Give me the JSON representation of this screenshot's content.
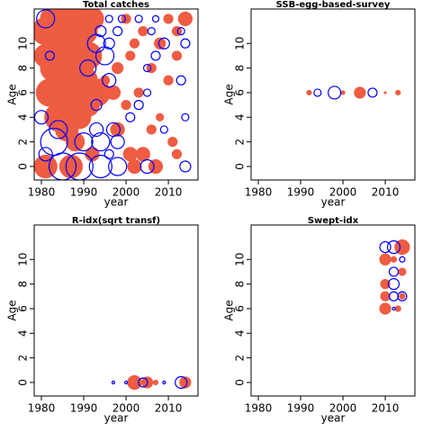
{
  "chart_data": [
    {
      "type": "bubble",
      "title": "Total catches",
      "xlabel": "year",
      "ylabel": "Age",
      "xlim": [
        1978.3,
        2017
      ],
      "ylim": [
        -1.1,
        12.8
      ],
      "xticks": [
        1980,
        1990,
        2000,
        2010
      ],
      "yticks": [
        0,
        2,
        4,
        6,
        8,
        10
      ],
      "series": [
        {
          "color": "#EE5C42",
          "filled": true,
          "x": [
            1983,
            1986,
            1989,
            1992,
            2000,
            2010,
            2014,
            1981,
            1985,
            1990,
            2004,
            2012,
            1984,
            1988,
            2002,
            2008,
            1981,
            1986,
            1991,
            2001,
            2012,
            1983,
            1989,
            1998,
            2006,
            1985,
            1990,
            1995,
            2010,
            1982,
            1987,
            1993,
            1997,
            2003,
            1986,
            1991,
            2000,
            1984,
            1989,
            2008,
            1986,
            1998,
            2006,
            1988,
            2011,
            1992,
            2001,
            2004,
            2012,
            1981,
            1987,
            2002,
            2007
          ],
          "y": [
            12,
            12,
            12,
            12,
            12,
            12,
            12,
            11,
            11,
            11,
            11,
            11,
            10,
            10,
            10,
            10,
            9,
            9,
            9,
            9,
            9,
            8,
            8,
            8,
            8,
            7,
            7,
            7,
            7,
            6,
            6,
            6,
            6,
            6,
            5,
            5,
            5,
            4,
            4,
            4,
            3,
            3,
            3,
            2,
            2,
            1,
            1,
            1,
            1,
            0,
            0,
            0,
            0
          ],
          "size": [
            3,
            3,
            3,
            2.5,
            1,
            1,
            1.5,
            3,
            3,
            3,
            1,
            1,
            3,
            3,
            1,
            1.2,
            2.5,
            3,
            3,
            1,
            1,
            3,
            3,
            1.2,
            1,
            3,
            3,
            1,
            1,
            3,
            3,
            3,
            1.5,
            1,
            3,
            2.5,
            1,
            3,
            2.5,
            0.8,
            2.5,
            1.5,
            1,
            2,
            1,
            1.5,
            1.5,
            1.5,
            1,
            2.5,
            2.5,
            1.5,
            1.5
          ]
        },
        {
          "color": "#0000FF",
          "filled": false,
          "x": [
            1981,
            1996,
            1999,
            2003,
            2007,
            1994,
            1998,
            2006,
            2013,
            1993,
            1996,
            2009,
            2014,
            1995,
            1982,
            2007,
            1991,
            2005,
            1996,
            2013,
            2005,
            1993,
            2003,
            1980,
            2001,
            2014,
            1984,
            1993,
            1997,
            2009,
            1983,
            1990,
            1994,
            1998,
            1981,
            1996,
            1985,
            1989,
            1994,
            1998,
            2005,
            2014
          ],
          "y": [
            12,
            12,
            12,
            12,
            12,
            11,
            11,
            11,
            11,
            10,
            10,
            10,
            10,
            9,
            9,
            9,
            8,
            8,
            7,
            7,
            6,
            5,
            5,
            4,
            4,
            4,
            3,
            3,
            3,
            3,
            2,
            2,
            2,
            2,
            1,
            1,
            0,
            0,
            0,
            0,
            0,
            0
          ],
          "size": [
            2,
            0.8,
            0.8,
            0.8,
            0.7,
            1.2,
            1,
            0.8,
            0.8,
            2,
            1.2,
            1.2,
            1,
            2,
            1,
            1,
            1.8,
            0.8,
            1.5,
            1,
            0.8,
            1.2,
            1,
            1.5,
            1,
            0.8,
            2,
            1.5,
            1.5,
            0.8,
            3,
            2,
            2,
            1.5,
            1.5,
            1,
            3,
            3,
            2.5,
            2,
            1.5,
            1.2
          ]
        }
      ]
    },
    {
      "type": "bubble",
      "title": "SSB-egg-based-survey",
      "xlabel": "year",
      "ylabel": "Age",
      "xlim": [
        1978.3,
        2017
      ],
      "ylim": [
        -1.1,
        12.8
      ],
      "xticks": [
        1980,
        1990,
        2000,
        2010
      ],
      "yticks": [
        0,
        2,
        4,
        6,
        8,
        10
      ],
      "series": [
        {
          "color": "#EE5C42",
          "filled": true,
          "x": [
            1992,
            2000,
            2004,
            2010,
            2013
          ],
          "y": [
            6,
            6,
            6,
            6,
            6
          ],
          "size": [
            0.5,
            0.4,
            1.2,
            0.2,
            0.5
          ]
        },
        {
          "color": "#0000FF",
          "filled": false,
          "x": [
            1994,
            1998,
            2007
          ],
          "y": [
            6,
            6,
            6
          ],
          "size": [
            0.8,
            1.4,
            1.0
          ]
        }
      ]
    },
    {
      "type": "bubble",
      "title": "R-idx(sqrt transf)",
      "xlabel": "year",
      "ylabel": "Age",
      "xlim": [
        1978.3,
        2017
      ],
      "ylim": [
        -1.1,
        12.8
      ],
      "xticks": [
        1980,
        1990,
        2000,
        2010
      ],
      "yticks": [
        0,
        2,
        4,
        6,
        8,
        10
      ],
      "series": [
        {
          "color": "#EE5C42",
          "filled": true,
          "x": [
            2002,
            2005,
            2007,
            2014
          ],
          "y": [
            0,
            0,
            0,
            0
          ],
          "size": [
            1.5,
            1.2,
            0.5,
            1.2
          ]
        },
        {
          "color": "#0000FF",
          "filled": false,
          "x": [
            1997,
            2000,
            2004,
            2009,
            2013
          ],
          "y": [
            0,
            0,
            0,
            0,
            0
          ],
          "size": [
            0.3,
            0.3,
            1.0,
            0.3,
            1.3
          ]
        }
      ]
    },
    {
      "type": "bubble",
      "title": "Swept-idx",
      "xlabel": "year",
      "ylabel": "Age",
      "xlim": [
        1978.3,
        2017
      ],
      "ylim": [
        -1.1,
        12.8
      ],
      "xticks": [
        1980,
        1990,
        2000,
        2010
      ],
      "yticks": [
        0,
        2,
        4,
        6,
        8,
        10
      ],
      "series": [
        {
          "color": "#EE5C42",
          "filled": true,
          "x": [
            2014,
            2010,
            2012,
            2014,
            2010,
            2010,
            2014,
            2010,
            2013
          ],
          "y": [
            11,
            10,
            10,
            9,
            8,
            7,
            7,
            6,
            6
          ],
          "size": [
            1.6,
            1.2,
            0.6,
            0.8,
            1.0,
            1.0,
            0.6,
            1.2,
            0.6
          ]
        },
        {
          "color": "#0000FF",
          "filled": false,
          "x": [
            2010,
            2012,
            2014,
            2012,
            2012,
            2012,
            2014,
            2012
          ],
          "y": [
            11,
            11,
            10,
            9,
            8,
            7,
            7,
            6
          ],
          "size": [
            1.2,
            1.4,
            0.6,
            1.0,
            1.2,
            1.0,
            1.0,
            0.3
          ]
        }
      ]
    }
  ]
}
